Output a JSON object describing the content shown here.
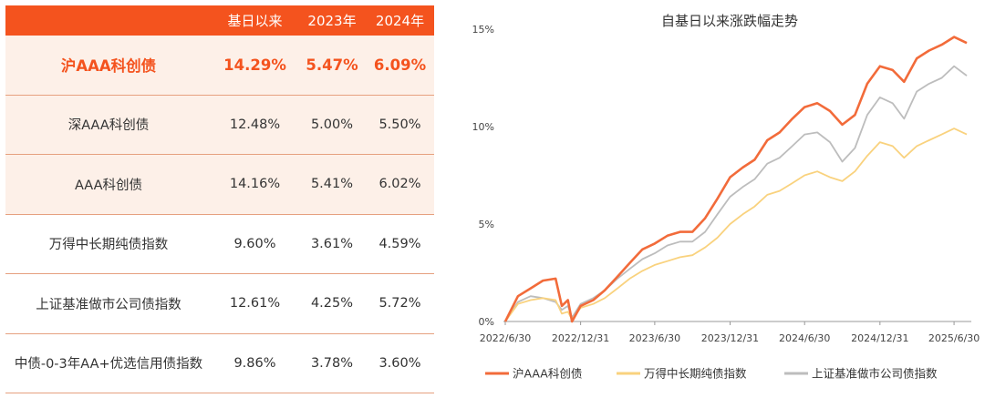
{
  "table": {
    "headers": [
      "",
      "基日以来",
      "2023年",
      "2024年"
    ],
    "rows": [
      {
        "name": "沪AAA科创债",
        "values": [
          "14.29%",
          "5.47%",
          "6.09%"
        ]
      },
      {
        "name": "深AAA科创债",
        "values": [
          "12.48%",
          "5.00%",
          "5.50%"
        ]
      },
      {
        "name": "AAA科创债",
        "values": [
          "14.16%",
          "5.41%",
          "6.02%"
        ]
      },
      {
        "name": "万得中长期纯债指数",
        "values": [
          "9.60%",
          "3.61%",
          "4.59%"
        ]
      },
      {
        "name": "上证基准做市公司债指数",
        "values": [
          "12.61%",
          "4.25%",
          "5.72%"
        ]
      },
      {
        "name": "中债-0-3年AA+优选信用债指数",
        "values": [
          "9.86%",
          "3.78%",
          "3.60%"
        ]
      }
    ]
  },
  "colors": {
    "accent": "#f4531e",
    "orange": "#f26b3a",
    "yellow": "#f9d27e",
    "gray": "#bdbdbd",
    "tint": "#fdf0e8"
  },
  "chart_data": {
    "type": "line",
    "title": "自基日以来涨跌幅走势",
    "xlabel": "",
    "ylabel": "",
    "x_ticks": [
      "2022/6/30",
      "2022/12/31",
      "2023/6/30",
      "2023/12/31",
      "2024/6/30",
      "2024/12/31",
      "2025/6/30"
    ],
    "y_ticks": [
      "0%",
      "5%",
      "10%",
      "15%"
    ],
    "ylim": [
      0,
      15
    ],
    "xlim": [
      "2022-06-30",
      "2025-07-31"
    ],
    "grid": false,
    "legend": "bottom",
    "series": [
      {
        "name": "沪AAA科创债",
        "color": "#f26b3a",
        "x": [
          "2022-06-30",
          "2022-07-31",
          "2022-08-31",
          "2022-09-30",
          "2022-10-31",
          "2022-11-15",
          "2022-11-30",
          "2022-12-10",
          "2022-12-31",
          "2023-01-31",
          "2023-02-28",
          "2023-03-31",
          "2023-04-30",
          "2023-05-31",
          "2023-06-30",
          "2023-07-31",
          "2023-08-31",
          "2023-09-30",
          "2023-10-31",
          "2023-11-30",
          "2023-12-31",
          "2024-01-31",
          "2024-02-29",
          "2024-03-31",
          "2024-04-30",
          "2024-05-31",
          "2024-06-30",
          "2024-07-31",
          "2024-08-31",
          "2024-09-30",
          "2024-10-31",
          "2024-11-30",
          "2024-12-31",
          "2025-01-31",
          "2025-02-28",
          "2025-03-31",
          "2025-04-30",
          "2025-05-31",
          "2025-06-30",
          "2025-07-31"
        ],
        "y": [
          0,
          1.3,
          1.7,
          2.1,
          2.2,
          0.8,
          1.1,
          0,
          0.8,
          1.1,
          1.6,
          2.3,
          3.0,
          3.7,
          4.0,
          4.4,
          4.6,
          4.6,
          5.3,
          6.3,
          7.4,
          7.9,
          8.3,
          9.3,
          9.7,
          10.4,
          11.0,
          11.2,
          10.8,
          10.1,
          10.6,
          12.2,
          13.1,
          12.9,
          12.3,
          13.5,
          13.9,
          14.2,
          14.6,
          14.29
        ]
      },
      {
        "name": "万得中长期纯债指数",
        "color": "#f9d27e",
        "x": [
          "2022-06-30",
          "2022-07-31",
          "2022-08-31",
          "2022-09-30",
          "2022-10-31",
          "2022-11-15",
          "2022-11-30",
          "2022-12-10",
          "2022-12-31",
          "2023-01-31",
          "2023-02-28",
          "2023-03-31",
          "2023-04-30",
          "2023-05-31",
          "2023-06-30",
          "2023-07-31",
          "2023-08-31",
          "2023-09-30",
          "2023-10-31",
          "2023-11-30",
          "2023-12-31",
          "2024-01-31",
          "2024-02-29",
          "2024-03-31",
          "2024-04-30",
          "2024-05-31",
          "2024-06-30",
          "2024-07-31",
          "2024-08-31",
          "2024-09-30",
          "2024-10-31",
          "2024-11-30",
          "2024-12-31",
          "2025-01-31",
          "2025-02-28",
          "2025-03-31",
          "2025-04-30",
          "2025-05-31",
          "2025-06-30",
          "2025-07-31"
        ],
        "y": [
          0,
          0.9,
          1.1,
          1.2,
          1.1,
          0.4,
          0.5,
          0.1,
          0.7,
          0.9,
          1.2,
          1.7,
          2.2,
          2.6,
          2.9,
          3.1,
          3.3,
          3.4,
          3.8,
          4.3,
          5.0,
          5.5,
          5.9,
          6.5,
          6.7,
          7.1,
          7.5,
          7.7,
          7.4,
          7.2,
          7.7,
          8.5,
          9.2,
          9.0,
          8.4,
          9.0,
          9.3,
          9.6,
          9.9,
          9.6
        ]
      },
      {
        "name": "上证基准做市公司债指数",
        "color": "#bdbdbd",
        "x": [
          "2022-06-30",
          "2022-07-31",
          "2022-08-31",
          "2022-09-30",
          "2022-10-31",
          "2022-11-15",
          "2022-11-30",
          "2022-12-10",
          "2022-12-31",
          "2023-01-31",
          "2023-02-28",
          "2023-03-31",
          "2023-04-30",
          "2023-05-31",
          "2023-06-30",
          "2023-07-31",
          "2023-08-31",
          "2023-09-30",
          "2023-10-31",
          "2023-11-30",
          "2023-12-31",
          "2024-01-31",
          "2024-02-29",
          "2024-03-31",
          "2024-04-30",
          "2024-05-31",
          "2024-06-30",
          "2024-07-31",
          "2024-08-31",
          "2024-09-30",
          "2024-10-31",
          "2024-11-30",
          "2024-12-31",
          "2025-01-31",
          "2025-02-28",
          "2025-03-31",
          "2025-04-30",
          "2025-05-31",
          "2025-06-30",
          "2025-07-31"
        ],
        "y": [
          0,
          1.0,
          1.3,
          1.2,
          1.0,
          0.6,
          0.8,
          0.2,
          0.9,
          1.2,
          1.6,
          2.2,
          2.7,
          3.2,
          3.5,
          3.9,
          4.1,
          4.1,
          4.6,
          5.5,
          6.4,
          6.9,
          7.3,
          8.1,
          8.4,
          9.0,
          9.6,
          9.7,
          9.2,
          8.2,
          8.9,
          10.6,
          11.5,
          11.2,
          10.4,
          11.8,
          12.2,
          12.5,
          13.1,
          12.61
        ]
      }
    ]
  }
}
